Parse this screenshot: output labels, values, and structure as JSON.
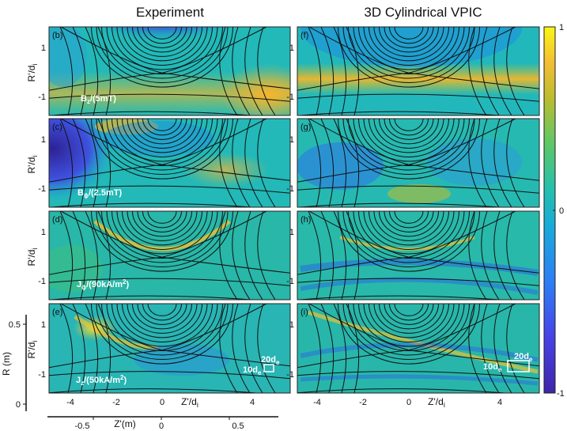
{
  "columns": {
    "left": "Experiment",
    "right": "3D Cylindrical VPIC"
  },
  "panels": [
    {
      "id": "b",
      "label": "(b)",
      "quantity": "Bz/(5mT)",
      "q_main": "B",
      "q_sub": "z",
      "q_tail": "/(5mT)"
    },
    {
      "id": "c",
      "label": "(c)",
      "quantity": "Bϕ/(2.5mT)",
      "q_main": "B",
      "q_sub": "ϕ",
      "q_tail": "/(2.5mT)"
    },
    {
      "id": "d",
      "label": "(d)",
      "quantity": "Jϕ/(90kA/m2)",
      "q_main": "J",
      "q_sub": "ϕ",
      "q_tail": "/(90kA/m",
      "q_sup": "2",
      "q_end": ")"
    },
    {
      "id": "e",
      "label": "(e)",
      "quantity": "Jz/(50kA/m2)",
      "q_main": "J",
      "q_sub": "z",
      "q_tail": "/(50kA/m",
      "q_sup": "2",
      "q_end": ")"
    },
    {
      "id": "f",
      "label": "(f)"
    },
    {
      "id": "g",
      "label": "(g)"
    },
    {
      "id": "h",
      "label": "(h)"
    },
    {
      "id": "i",
      "label": "(i)"
    }
  ],
  "axes": {
    "ylabel_main": "R'/d",
    "ylabel_sub": "i",
    "yticks": [
      "1",
      "-1"
    ],
    "xlabel_main": "Z'/d",
    "xlabel_sub": "i",
    "xticks": [
      "-4",
      "-2",
      "0",
      "4"
    ],
    "r_axis_label": "R (m)",
    "r_ticks": [
      "0.5",
      "0"
    ],
    "zm_axis_label": "Z'(m)",
    "zm_ticks": [
      "-0.5",
      "0",
      "0.5"
    ]
  },
  "scalebars": {
    "e": {
      "long_main": "20d",
      "long_sub": "e",
      "short_main": "10d",
      "short_sub": "e"
    },
    "i": {
      "long_main": "20d",
      "long_sub": "e",
      "short_main": "10d",
      "short_sub": "e"
    }
  },
  "colorbar": {
    "max": "1",
    "mid": "0",
    "min": "-1",
    "colors": [
      "#3e26a8",
      "#4742e6",
      "#2d7df5",
      "#1aa8db",
      "#22bfb0",
      "#5cc867",
      "#b8bd31",
      "#f2bd33",
      "#f9f614"
    ]
  }
}
